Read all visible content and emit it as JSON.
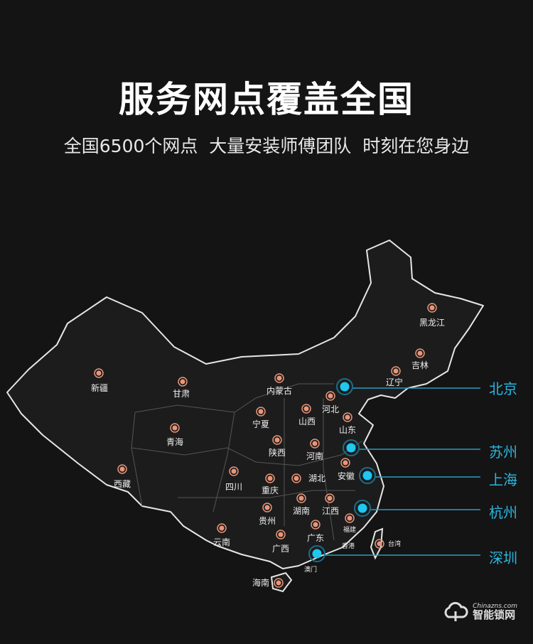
{
  "header": {
    "title": "服务网点覆盖全国",
    "subtitle": "全国6500个网点  大量安装师傅团队  时刻在您身边"
  },
  "map": {
    "provinces": [
      "新疆",
      "甘肃",
      "内蒙古",
      "黑龙江",
      "吉林",
      "辽宁",
      "河北",
      "山西",
      "宁夏",
      "山东",
      "青海",
      "陕西",
      "河南",
      "安徽",
      "湖北",
      "四川",
      "重庆",
      "西藏",
      "湖南",
      "江西",
      "贵州",
      "福建",
      "云南",
      "广西",
      "广东",
      "香港",
      "澳门",
      "台湾",
      "海南"
    ],
    "highlight_cities": [
      "北京",
      "苏州",
      "上海",
      "杭州",
      "深圳"
    ],
    "colors": {
      "province_dot": "#e8957a",
      "city_dot": "#1ec8f0",
      "city_label": "#2bb6e0",
      "outline": "#e6e6e6"
    }
  },
  "logo": {
    "en": "Chinazns.com",
    "cn": "智能锁网"
  }
}
